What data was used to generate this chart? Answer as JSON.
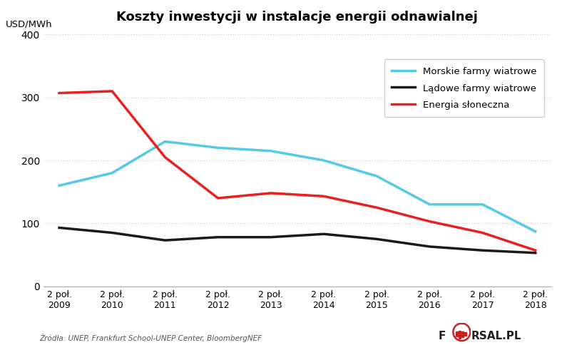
{
  "title": "Koszty inwestycji w instalacje energii odnawialnej",
  "ylabel": "USD/MWh",
  "source": "Źródła: UNEP, Frankfurt School-UNEP Center, BloombergNEF",
  "x_labels": [
    "2 poł.\n2009",
    "2 poł.\n2010",
    "2 poł.\n2011",
    "2 poł.\n2012",
    "2 poł.\n2013",
    "2 poł.\n2014",
    "2 poł.\n2015",
    "2 poł.\n2016",
    "2 poł.\n2017",
    "2 poł.\n2018"
  ],
  "x_values": [
    0,
    1,
    2,
    3,
    4,
    5,
    6,
    7,
    8,
    9
  ],
  "morskie": [
    160,
    180,
    230,
    220,
    215,
    200,
    175,
    130,
    130,
    87
  ],
  "ladowe": [
    93,
    85,
    73,
    78,
    78,
    83,
    75,
    63,
    57,
    53
  ],
  "sloneczna": [
    307,
    310,
    205,
    140,
    148,
    143,
    125,
    103,
    85,
    57
  ],
  "morskie_color": "#56c8e8",
  "ladowe_color": "#1a1a1a",
  "sloneczna_color": "#e82020",
  "ylim": [
    0,
    400
  ],
  "yticks": [
    0,
    100,
    200,
    300,
    400
  ],
  "grid_color": "#cccccc",
  "bg_color": "#ffffff",
  "legend_labels": [
    "Morskie farmy wiatrowe",
    "Lądowe farmy wiatrowe",
    "Energia słoneczna"
  ],
  "line_width": 2.5
}
